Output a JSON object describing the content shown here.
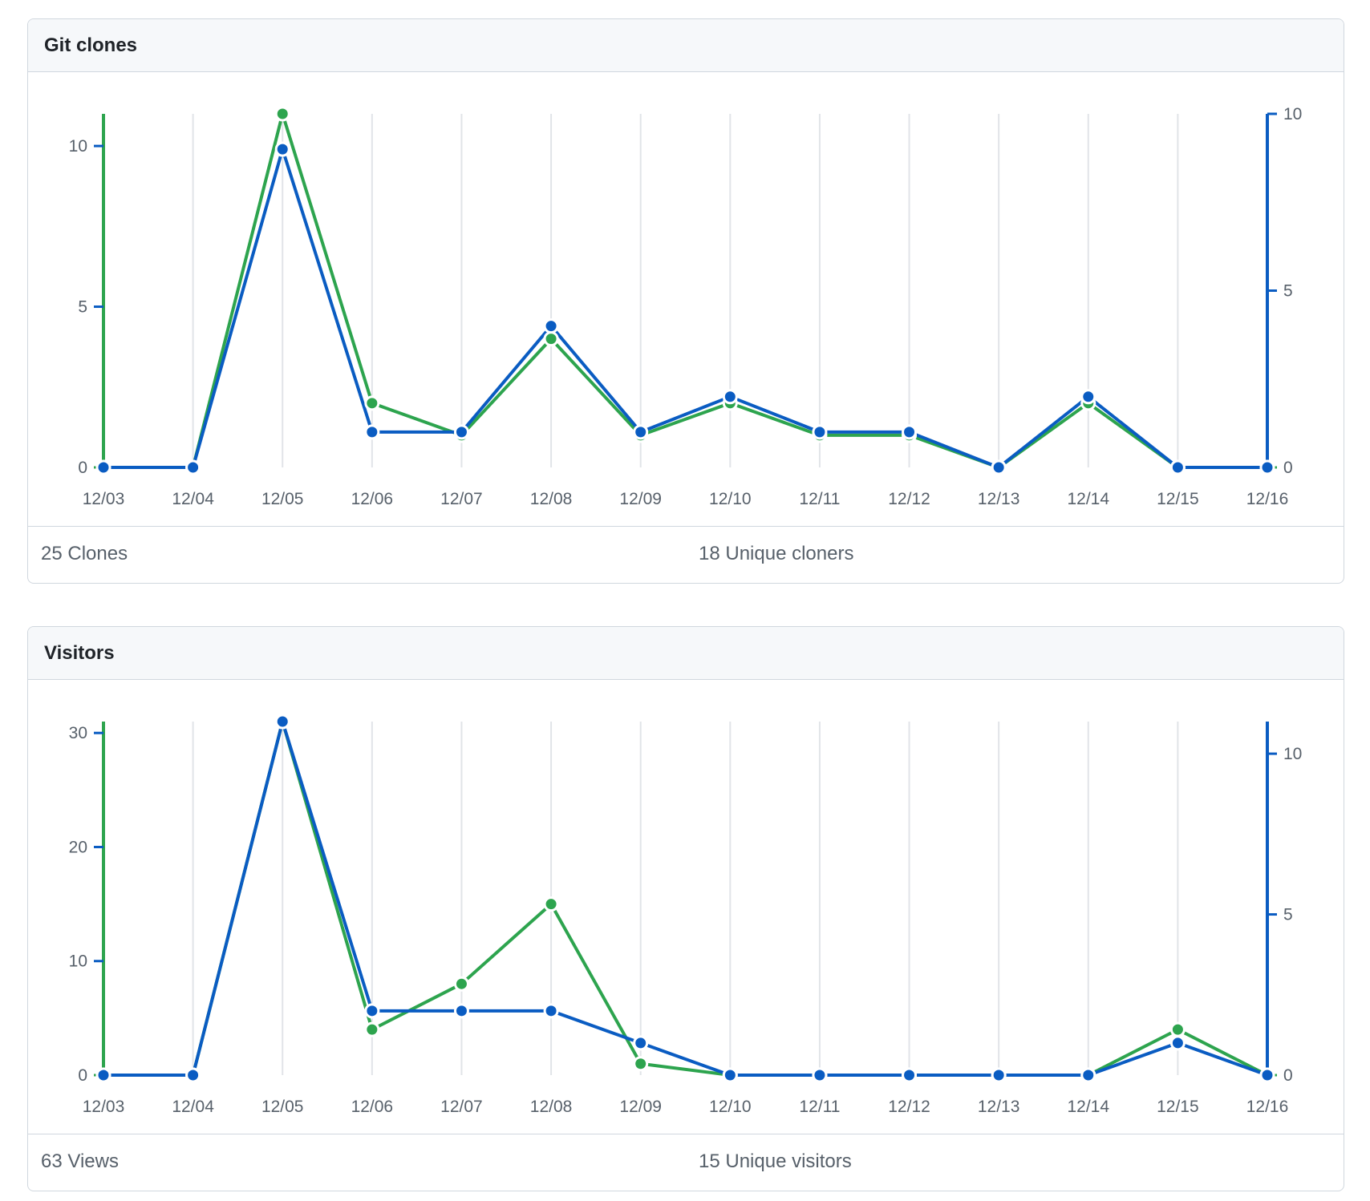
{
  "clones_panel": {
    "title": "Git clones",
    "total_label": "25 Clones",
    "unique_label": "18 Unique cloners"
  },
  "visitors_panel": {
    "title": "Visitors",
    "total_label": "63 Views",
    "unique_label": "15 Unique visitors"
  },
  "colors": {
    "total_series": "#2da44e",
    "unique_series": "#0a5cc2",
    "grid": "#e1e4e8",
    "axis_text": "#57606a"
  },
  "chart_data": [
    {
      "type": "line",
      "title": "Git clones",
      "categories": [
        "12/03",
        "12/04",
        "12/05",
        "12/06",
        "12/07",
        "12/08",
        "12/09",
        "12/10",
        "12/11",
        "12/12",
        "12/13",
        "12/14",
        "12/15",
        "12/16"
      ],
      "series": [
        {
          "name": "Clones",
          "axis": "left",
          "values": [
            0,
            0,
            11,
            2,
            1,
            4,
            1,
            2,
            1,
            1,
            0,
            2,
            0,
            0
          ]
        },
        {
          "name": "Unique cloners",
          "axis": "right",
          "values": [
            0,
            0,
            9,
            1,
            1,
            4,
            1,
            2,
            1,
            1,
            0,
            2,
            0,
            0
          ]
        }
      ],
      "left_axis": {
        "range": [
          0,
          11
        ],
        "ticks": [
          0,
          5,
          10
        ]
      },
      "right_axis": {
        "range": [
          0,
          10
        ],
        "ticks": [
          0,
          5,
          10
        ]
      },
      "grid": "vertical"
    },
    {
      "type": "line",
      "title": "Visitors",
      "categories": [
        "12/03",
        "12/04",
        "12/05",
        "12/06",
        "12/07",
        "12/08",
        "12/09",
        "12/10",
        "12/11",
        "12/12",
        "12/13",
        "12/14",
        "12/15",
        "12/16"
      ],
      "series": [
        {
          "name": "Views",
          "axis": "left",
          "values": [
            0,
            0,
            31,
            4,
            8,
            15,
            1,
            0,
            0,
            0,
            0,
            0,
            4,
            0
          ]
        },
        {
          "name": "Unique visitors",
          "axis": "right",
          "values": [
            0,
            0,
            11,
            2,
            2,
            2,
            1,
            0,
            0,
            0,
            0,
            0,
            1,
            0
          ]
        }
      ],
      "left_axis": {
        "range": [
          0,
          31
        ],
        "ticks": [
          0,
          10,
          20,
          30
        ]
      },
      "right_axis": {
        "range": [
          0,
          11
        ],
        "ticks": [
          0,
          5,
          10
        ]
      },
      "grid": "vertical"
    }
  ]
}
